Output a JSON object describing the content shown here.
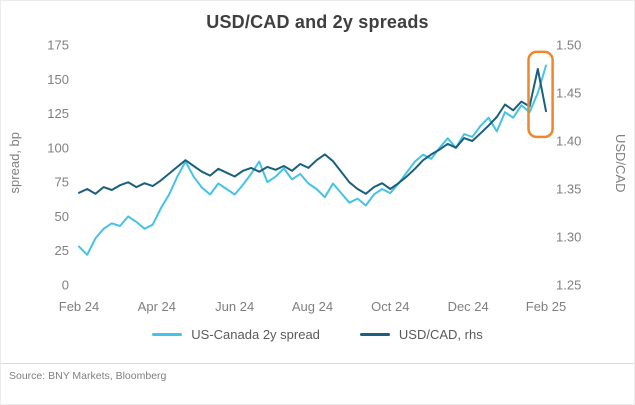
{
  "footer": {
    "source": "Source: BNY Markets, Bloomberg"
  },
  "chart_data": {
    "type": "line",
    "title": "USD/CAD and 2y spreads",
    "x_unit": "months from Feb 2024 (0 = Feb 24, 12 = Feb 25)",
    "x_ticks": [
      "Feb 24",
      "Apr 24",
      "Jun 24",
      "Aug 24",
      "Oct 24",
      "Dec 24",
      "Feb 25"
    ],
    "left_axis": {
      "label": "spread, bp",
      "min": 0,
      "max": 175,
      "ticks": [
        "0",
        "25",
        "50",
        "75",
        "100",
        "125",
        "150",
        "175"
      ]
    },
    "right_axis": {
      "label": "USD/CAD",
      "min": 1.25,
      "max": 1.5,
      "ticks": [
        "1.25",
        "1.30",
        "1.35",
        "1.40",
        "1.45",
        "1.50"
      ]
    },
    "grid": false,
    "legend_position": "bottom",
    "series": [
      {
        "name": "US-Canada 2y spread",
        "axis": "left",
        "color": "#44C3E6",
        "values": [
          28,
          22,
          34,
          41,
          45,
          43,
          50,
          46,
          41,
          44,
          56,
          66,
          79,
          90,
          79,
          71,
          66,
          74,
          70,
          66,
          73,
          81,
          90,
          75,
          79,
          85,
          77,
          81,
          74,
          70,
          64,
          74,
          67,
          60,
          63,
          58,
          66,
          70,
          67,
          74,
          82,
          90,
          95,
          92,
          100,
          107,
          100,
          110,
          108,
          116,
          122,
          112,
          126,
          122,
          131,
          126,
          140,
          160
        ]
      },
      {
        "name": "USD/CAD, rhs",
        "axis": "right",
        "color": "#1A607C",
        "values": [
          1.346,
          1.35,
          1.345,
          1.352,
          1.349,
          1.354,
          1.357,
          1.352,
          1.356,
          1.353,
          1.359,
          1.366,
          1.373,
          1.38,
          1.374,
          1.368,
          1.364,
          1.371,
          1.367,
          1.363,
          1.369,
          1.372,
          1.368,
          1.373,
          1.37,
          1.374,
          1.369,
          1.376,
          1.372,
          1.38,
          1.386,
          1.379,
          1.368,
          1.357,
          1.35,
          1.345,
          1.352,
          1.356,
          1.35,
          1.356,
          1.363,
          1.371,
          1.38,
          1.386,
          1.391,
          1.397,
          1.393,
          1.403,
          1.4,
          1.408,
          1.416,
          1.425,
          1.438,
          1.432,
          1.441,
          1.436,
          1.475,
          1.431
        ]
      }
    ],
    "highlight": {
      "shape": "rounded-rect",
      "color": "#F0862C",
      "x_month_start": 11.55,
      "x_month_end": 12.17,
      "bp_min": 108,
      "bp_max": 170
    }
  }
}
